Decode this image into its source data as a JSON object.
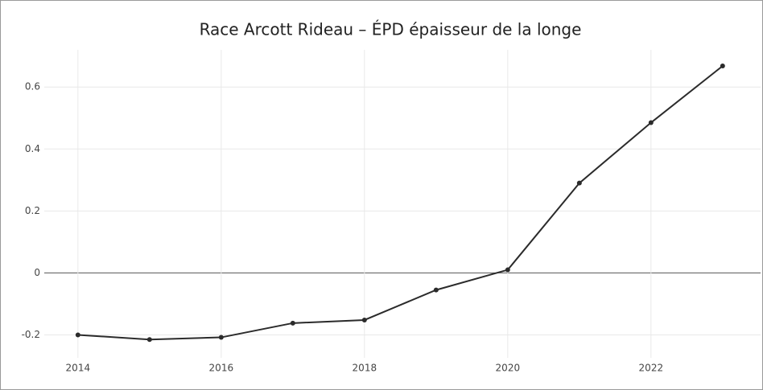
{
  "chart_data": {
    "type": "line",
    "title": "Race Arcott Rideau – ÉPD épaisseur de la longe",
    "x": [
      2014,
      2015,
      2016,
      2017,
      2018,
      2019,
      2020,
      2021,
      2022,
      2023
    ],
    "series": [
      {
        "color": "#2b2b2b",
        "values": [
          -0.2,
          -0.215,
          -0.208,
          -0.162,
          -0.152,
          -0.055,
          0.01,
          0.29,
          0.485,
          0.668
        ]
      }
    ],
    "xlim": [
      2013.53,
      2023.53
    ],
    "xticks": [
      2014,
      2016,
      2018,
      2020,
      2022
    ],
    "ylim": [
      -0.3,
      0.72
    ],
    "yticks": [
      -0.2,
      0,
      0.2,
      0.4,
      0.6
    ],
    "grid": true,
    "zeroline": true
  }
}
